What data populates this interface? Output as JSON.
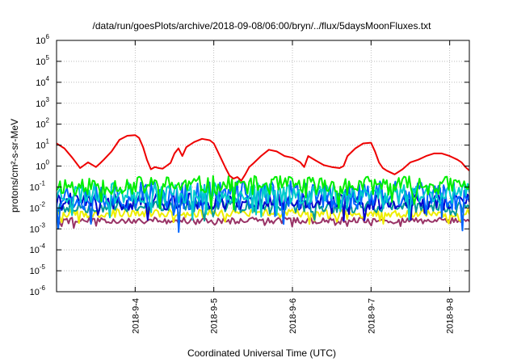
{
  "chart_data": {
    "type": "line",
    "title": "/data/run/goesPlots/archive/2018-09-08/06:00/bryn/../flux/5daysMoonFluxes.txt",
    "xlabel": "Coordinated Universal Time (UTC)",
    "ylabel": "protons/cm²-s-sr-MeV",
    "yscale": "log",
    "ylim": [
      1e-06,
      1000000.0
    ],
    "xlim": [
      3.0,
      8.25
    ],
    "grid": true,
    "x_ticks": [
      {
        "value": 4,
        "label": "2018-9-4"
      },
      {
        "value": 5,
        "label": "2018-9-5"
      },
      {
        "value": 6,
        "label": "2018-9-6"
      },
      {
        "value": 7,
        "label": "2018-9-7"
      },
      {
        "value": 8,
        "label": "2018-9-8"
      }
    ],
    "y_ticks": [
      {
        "exp": -6,
        "label": "10",
        "sup": "-6"
      },
      {
        "exp": -5,
        "label": "10",
        "sup": "-5"
      },
      {
        "exp": -4,
        "label": "10",
        "sup": "-4"
      },
      {
        "exp": -3,
        "label": "10",
        "sup": "-3"
      },
      {
        "exp": -2,
        "label": "10",
        "sup": "-2"
      },
      {
        "exp": -1,
        "label": "10",
        "sup": "-1"
      },
      {
        "exp": 0,
        "label": "10",
        "sup": "0"
      },
      {
        "exp": 1,
        "label": "10",
        "sup": "1"
      },
      {
        "exp": 2,
        "label": "10",
        "sup": "2"
      },
      {
        "exp": 3,
        "label": "10",
        "sup": "3"
      },
      {
        "exp": 4,
        "label": "10",
        "sup": "4"
      },
      {
        "exp": 5,
        "label": "10",
        "sup": "5"
      },
      {
        "exp": 6,
        "label": "10",
        "sup": "6"
      }
    ],
    "series": [
      {
        "color": "#ee0000",
        "points": [
          [
            3.0,
            12
          ],
          [
            3.1,
            7
          ],
          [
            3.2,
            2.5
          ],
          [
            3.3,
            0.8
          ],
          [
            3.4,
            1.5
          ],
          [
            3.5,
            0.9
          ],
          [
            3.55,
            1.3
          ],
          [
            3.6,
            2
          ],
          [
            3.7,
            5
          ],
          [
            3.8,
            18
          ],
          [
            3.9,
            28
          ],
          [
            4.0,
            30
          ],
          [
            4.05,
            22
          ],
          [
            4.1,
            8
          ],
          [
            4.15,
            2
          ],
          [
            4.2,
            0.7
          ],
          [
            4.25,
            0.9
          ],
          [
            4.3,
            0.8
          ],
          [
            4.35,
            0.75
          ],
          [
            4.45,
            1.4
          ],
          [
            4.5,
            4
          ],
          [
            4.55,
            7
          ],
          [
            4.6,
            3
          ],
          [
            4.65,
            8
          ],
          [
            4.75,
            14
          ],
          [
            4.85,
            20
          ],
          [
            4.95,
            17
          ],
          [
            5.0,
            12
          ],
          [
            5.05,
            5
          ],
          [
            5.1,
            2
          ],
          [
            5.15,
            0.8
          ],
          [
            5.2,
            0.35
          ],
          [
            5.25,
            0.25
          ],
          [
            5.3,
            0.3
          ],
          [
            5.35,
            0.2
          ],
          [
            5.4,
            0.4
          ],
          [
            5.45,
            0.9
          ],
          [
            5.5,
            1.3
          ],
          [
            5.6,
            3
          ],
          [
            5.7,
            6
          ],
          [
            5.8,
            5
          ],
          [
            5.9,
            3
          ],
          [
            6.0,
            2.5
          ],
          [
            6.1,
            1.5
          ],
          [
            6.15,
            0.9
          ],
          [
            6.2,
            3
          ],
          [
            6.3,
            1.8
          ],
          [
            6.4,
            1.1
          ],
          [
            6.5,
            0.9
          ],
          [
            6.6,
            0.8
          ],
          [
            6.65,
            1
          ],
          [
            6.7,
            3
          ],
          [
            6.8,
            7
          ],
          [
            6.9,
            12
          ],
          [
            7.0,
            13
          ],
          [
            7.05,
            5
          ],
          [
            7.1,
            1.5
          ],
          [
            7.15,
            0.8
          ],
          [
            7.2,
            0.6
          ],
          [
            7.3,
            0.4
          ],
          [
            7.4,
            0.7
          ],
          [
            7.5,
            1.5
          ],
          [
            7.6,
            2
          ],
          [
            7.7,
            3
          ],
          [
            7.8,
            4
          ],
          [
            7.9,
            4
          ],
          [
            8.0,
            3
          ],
          [
            8.1,
            2
          ],
          [
            8.15,
            1.5
          ],
          [
            8.2,
            0.9
          ],
          [
            8.25,
            0.6
          ]
        ]
      },
      {
        "color": "#00ee00",
        "level": 0.12,
        "noise": 0.45,
        "seed": 11
      },
      {
        "color": "#00cccc",
        "level": 0.05,
        "noise": 0.5,
        "seed": 23
      },
      {
        "color": "#0066ff",
        "level": 0.04,
        "noise": 0.7,
        "seed": 37
      },
      {
        "color": "#0000cc",
        "level": 0.02,
        "noise": 0.4,
        "seed": 41
      },
      {
        "color": "#009999",
        "level": 0.012,
        "noise": 0.3,
        "seed": 53
      },
      {
        "color": "#eeee00",
        "level": 0.0055,
        "noise": 0.2,
        "seed": 67
      },
      {
        "color": "#993366",
        "level": 0.0025,
        "noise": 0.15,
        "seed": 79
      }
    ]
  }
}
